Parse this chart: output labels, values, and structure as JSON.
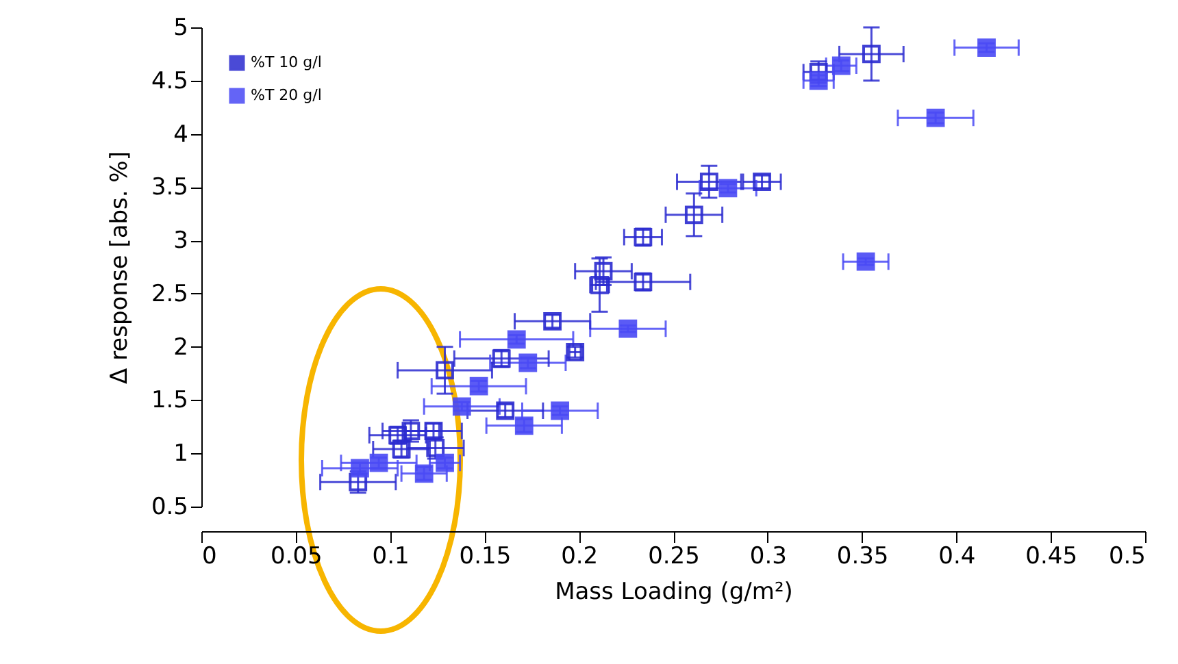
{
  "chart_data": {
    "type": "scatter",
    "xlabel": "Mass Loading (g/m²)",
    "ylabel": "Δ response [abs. %]",
    "xlim": [
      0,
      0.5
    ],
    "xticks": [
      0,
      0.05,
      0.1,
      0.15,
      0.2,
      0.25,
      0.3,
      0.35,
      0.4,
      0.45,
      0.5
    ],
    "ylim": [
      0.5,
      5
    ],
    "yticks": [
      0.5,
      1,
      1.5,
      2,
      2.5,
      3,
      3.5,
      4,
      4.5,
      5
    ],
    "grid": false,
    "legend": "top left",
    "marker": "square",
    "series": [
      {
        "name": "%T 10 g/l",
        "color": "#2b2bd0",
        "x": [
          0.355,
          0.327,
          0.297,
          0.269,
          0.261,
          0.234,
          0.213,
          0.234,
          0.211,
          0.186,
          0.198,
          0.159,
          0.129,
          0.161,
          0.104,
          0.111,
          0.123,
          0.124,
          0.106,
          0.083
        ],
        "values": [
          4.75,
          4.58,
          3.55,
          3.55,
          3.24,
          3.03,
          2.71,
          2.61,
          2.58,
          2.24,
          1.95,
          1.89,
          1.78,
          1.4,
          1.17,
          1.21,
          1.21,
          1.05,
          1.04,
          0.73
        ],
        "xerrors": [
          0.017,
          0.008,
          0.01,
          0.017,
          0.015,
          0.01,
          0.015,
          0.025,
          0.005,
          0.02,
          0.003,
          0.025,
          0.025,
          0.02,
          0.015,
          0.015,
          0.015,
          0.015,
          0.015,
          0.02
        ],
        "errors": [
          0.25,
          0.1,
          0.06,
          0.15,
          0.2,
          0.08,
          0.13,
          0.08,
          0.25,
          0.06,
          0.05,
          0.08,
          0.22,
          0.06,
          0.08,
          0.1,
          0.07,
          0.1,
          0.08,
          0.1
        ]
      },
      {
        "name": "%T 20 g/l",
        "color": "#4a4af5",
        "x": [
          0.416,
          0.339,
          0.327,
          0.389,
          0.352,
          0.279,
          0.226,
          0.167,
          0.173,
          0.147,
          0.138,
          0.19,
          0.171,
          0.084,
          0.094,
          0.118,
          0.129
        ],
        "values": [
          4.81,
          4.64,
          4.5,
          4.15,
          2.8,
          3.49,
          2.17,
          2.07,
          1.85,
          1.63,
          1.44,
          1.4,
          1.26,
          0.86,
          0.91,
          0.81,
          0.91
        ],
        "xerrors": [
          0.017,
          0.008,
          0.008,
          0.02,
          0.012,
          0.015,
          0.02,
          0.03,
          0.02,
          0.025,
          0.02,
          0.02,
          0.02,
          0.02,
          0.02,
          0.012,
          0.008
        ],
        "errors": [
          0.04,
          0.05,
          0.05,
          0.05,
          0.03,
          0.04,
          0.03,
          0.04,
          0.05,
          0.05,
          0.04,
          0.04,
          0.06,
          0.05,
          0.05,
          0.06,
          0.05
        ]
      }
    ]
  }
}
